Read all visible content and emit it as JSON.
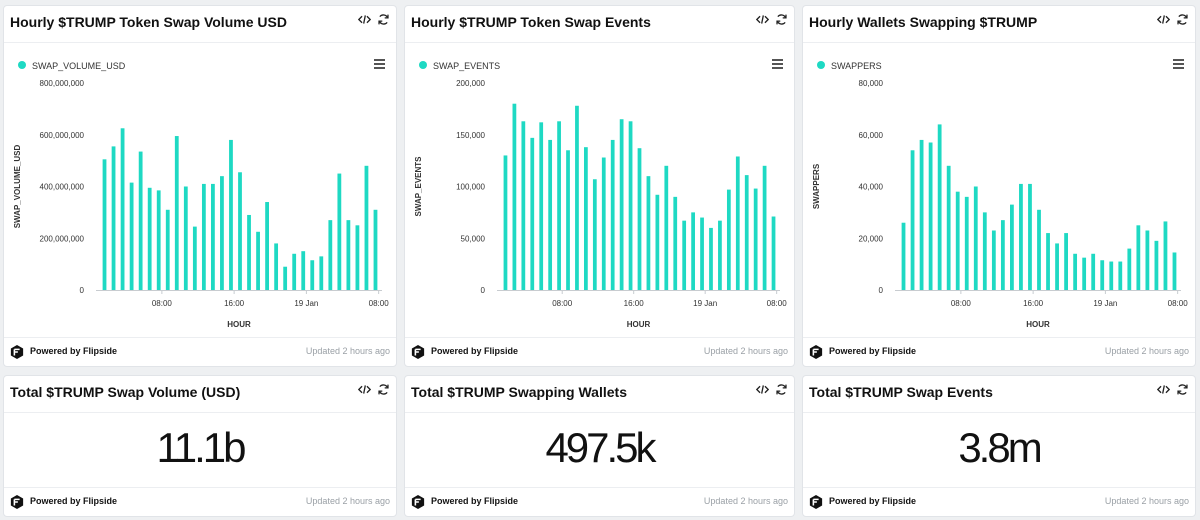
{
  "colors": {
    "accent": "#1ed9c3",
    "muted": "#9aa0a6"
  },
  "footer": {
    "powered_by": "Powered by Flipside",
    "updated": "Updated 2 hours ago"
  },
  "charts": [
    {
      "title": "Hourly $TRUMP Token Swap Volume USD",
      "legend": "SWAP_VOLUME_USD",
      "ylabel": "SWAP_VOLUME_USD",
      "xlabel": "HOUR",
      "yticks": [
        "0",
        "200,000,000",
        "400,000,000",
        "600,000,000",
        "800,000,000"
      ],
      "xticks": [
        "08:00",
        "16:00",
        "19 Jan",
        "08:00"
      ]
    },
    {
      "title": "Hourly $TRUMP Token Swap Events",
      "legend": "SWAP_EVENTS",
      "ylabel": "SWAP_EVENTS",
      "xlabel": "HOUR",
      "yticks": [
        "0",
        "50,000",
        "100,000",
        "150,000",
        "200,000"
      ],
      "xticks": [
        "08:00",
        "16:00",
        "19 Jan",
        "08:00"
      ]
    },
    {
      "title": "Hourly Wallets Swapping $TRUMP",
      "legend": "SWAPPERS",
      "ylabel": "SWAPPERS",
      "xlabel": "HOUR",
      "yticks": [
        "0",
        "20,000",
        "40,000",
        "60,000",
        "80,000"
      ],
      "xticks": [
        "08:00",
        "16:00",
        "19 Jan",
        "08:00"
      ]
    }
  ],
  "stats": [
    {
      "title": "Total $TRUMP Swap Volume (USD)",
      "value": "11.1b"
    },
    {
      "title": "Total $TRUMP Swapping Wallets",
      "value": "497.5k"
    },
    {
      "title": "Total $TRUMP Swap Events",
      "value": "3.8m"
    }
  ],
  "chart_data": [
    {
      "type": "bar",
      "title": "Hourly $TRUMP Token Swap Volume USD",
      "xlabel": "HOUR",
      "ylabel": "SWAP_VOLUME_USD",
      "ylim": [
        0,
        800000000
      ],
      "x_tick_labels": [
        "08:00",
        "16:00",
        "19 Jan",
        "08:00"
      ],
      "series": [
        {
          "name": "SWAP_VOLUME_USD",
          "values": [
            505000000,
            555000000,
            625000000,
            415000000,
            535000000,
            395000000,
            385000000,
            310000000,
            595000000,
            400000000,
            245000000,
            410000000,
            410000000,
            440000000,
            580000000,
            455000000,
            290000000,
            225000000,
            340000000,
            180000000,
            90000000,
            140000000,
            150000000,
            115000000,
            130000000,
            270000000,
            450000000,
            270000000,
            250000000,
            480000000,
            310000000
          ]
        }
      ]
    },
    {
      "type": "bar",
      "title": "Hourly $TRUMP Token Swap Events",
      "xlabel": "HOUR",
      "ylabel": "SWAP_EVENTS",
      "ylim": [
        0,
        200000
      ],
      "x_tick_labels": [
        "08:00",
        "16:00",
        "19 Jan",
        "08:00"
      ],
      "series": [
        {
          "name": "SWAP_EVENTS",
          "values": [
            130000,
            180000,
            163000,
            147000,
            162000,
            145000,
            163000,
            135000,
            178000,
            138000,
            107000,
            128000,
            145000,
            165000,
            163000,
            137000,
            110000,
            92000,
            120000,
            90000,
            67000,
            75000,
            70000,
            60000,
            67000,
            97000,
            129000,
            111000,
            98000,
            120000,
            71000
          ]
        }
      ]
    },
    {
      "type": "bar",
      "title": "Hourly Wallets Swapping $TRUMP",
      "xlabel": "HOUR",
      "ylabel": "SWAPPERS",
      "ylim": [
        0,
        80000
      ],
      "x_tick_labels": [
        "08:00",
        "16:00",
        "19 Jan",
        "08:00"
      ],
      "series": [
        {
          "name": "SWAPPERS",
          "values": [
            26000,
            54000,
            58000,
            57000,
            64000,
            48000,
            38000,
            36000,
            40000,
            30000,
            23000,
            27000,
            33000,
            41000,
            41000,
            31000,
            22000,
            18000,
            22000,
            14000,
            12500,
            14000,
            11500,
            11000,
            11000,
            16000,
            25000,
            23000,
            19000,
            26500,
            14500
          ]
        }
      ]
    }
  ]
}
